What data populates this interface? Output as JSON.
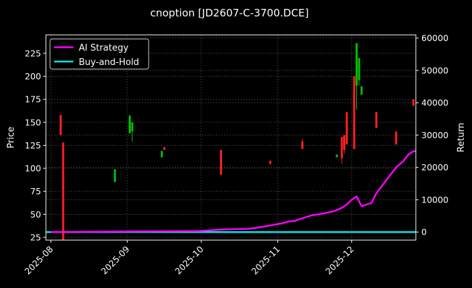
{
  "chart_data": {
    "type": "candlestick+line",
    "title": "cnoption [JD2607-C-3700.DCE]",
    "xlabel": "",
    "ylabel": "Price",
    "ylabel_right": "Return",
    "x_ticks": [
      "2025-08",
      "2025-09",
      "2025-10",
      "2025-11",
      "2025-12"
    ],
    "y_ticks_left": [
      25,
      50,
      75,
      100,
      125,
      150,
      175,
      200,
      225
    ],
    "y_ticks_right": [
      0,
      10000,
      20000,
      30000,
      40000,
      50000,
      60000
    ],
    "ylim_left": [
      22,
      245
    ],
    "ylim_right": [
      -2500,
      61000
    ],
    "xlim": [
      "2025-07-30",
      "2025-12-27"
    ],
    "grid": true,
    "legend_position": "upper left",
    "legend": [
      {
        "label": "AI Strategy",
        "color": "#ff00ff"
      },
      {
        "label": "Buy-and-Hold",
        "color": "#00e5ee"
      }
    ],
    "colors": {
      "up": "#00c000",
      "down": "#ff2020",
      "background": "#000000",
      "grid": "#555555"
    },
    "candles": [
      {
        "date": "2025-08-05",
        "open": 158,
        "close": 136,
        "high": 158,
        "low": 136
      },
      {
        "date": "2025-08-06",
        "open": 128,
        "close": 22,
        "high": 128,
        "low": 22
      },
      {
        "date": "2025-08-27",
        "open": 85,
        "close": 99,
        "high": 99,
        "low": 85
      },
      {
        "date": "2025-09-02",
        "open": 138,
        "close": 157,
        "high": 158,
        "low": 138
      },
      {
        "date": "2025-09-03",
        "open": 140,
        "close": 150,
        "high": 150,
        "low": 129
      },
      {
        "date": "2025-09-15",
        "open": 112,
        "close": 119,
        "high": 119,
        "low": 112
      },
      {
        "date": "2025-09-16",
        "open": 123,
        "close": 120,
        "high": 123,
        "low": 120
      },
      {
        "date": "2025-10-09",
        "open": 120,
        "close": 93,
        "high": 120,
        "low": 93
      },
      {
        "date": "2025-10-29",
        "open": 108,
        "close": 105,
        "high": 109,
        "low": 104
      },
      {
        "date": "2025-11-11",
        "open": 129,
        "close": 121,
        "high": 132,
        "low": 121
      },
      {
        "date": "2025-11-25",
        "open": 112,
        "close": 115,
        "high": 115,
        "low": 112
      },
      {
        "date": "2025-11-27",
        "open": 134,
        "close": 111,
        "high": 134,
        "low": 105
      },
      {
        "date": "2025-11-28",
        "open": 136,
        "close": 120,
        "high": 136,
        "low": 116
      },
      {
        "date": "2025-11-29",
        "open": 161,
        "close": 126,
        "high": 161,
        "low": 126
      },
      {
        "date": "2025-12-02",
        "open": 200,
        "close": 121,
        "high": 200,
        "low": 121
      },
      {
        "date": "2025-12-03",
        "open": 190,
        "close": 236,
        "high": 236,
        "low": 164
      },
      {
        "date": "2025-12-04",
        "open": 196,
        "close": 220,
        "high": 220,
        "low": 190
      },
      {
        "date": "2025-12-05",
        "open": 180,
        "close": 189,
        "high": 189,
        "low": 180
      },
      {
        "date": "2025-12-11",
        "open": 161,
        "close": 144,
        "high": 161,
        "low": 144
      },
      {
        "date": "2025-12-19",
        "open": 140,
        "close": 126,
        "high": 140,
        "low": 126
      },
      {
        "date": "2025-12-26",
        "open": 175,
        "close": 168,
        "high": 175,
        "low": 168
      }
    ],
    "series": [
      {
        "name": "AI Strategy",
        "color": "#ff00ff",
        "axis": "right",
        "x": [
          "2025-08-01",
          "2025-09-30",
          "2025-10-10",
          "2025-10-20",
          "2025-10-25",
          "2025-10-30",
          "2025-11-03",
          "2025-11-05",
          "2025-11-08",
          "2025-11-12",
          "2025-11-15",
          "2025-11-20",
          "2025-11-24",
          "2025-11-27",
          "2025-11-29",
          "2025-12-01",
          "2025-12-03",
          "2025-12-05",
          "2025-12-07",
          "2025-12-09",
          "2025-12-11",
          "2025-12-13",
          "2025-12-15",
          "2025-12-17",
          "2025-12-19",
          "2025-12-22",
          "2025-12-24",
          "2025-12-26",
          "2025-12-27"
        ],
        "values": [
          0,
          300,
          800,
          1000,
          1500,
          2200,
          2700,
          3200,
          3500,
          4500,
          5200,
          5800,
          6500,
          7500,
          8500,
          10000,
          11000,
          8000,
          8500,
          9000,
          12000,
          14000,
          16000,
          18000,
          20000,
          22000,
          24000,
          25000,
          25000
        ]
      },
      {
        "name": "Buy-and-Hold",
        "color": "#00e5ee",
        "axis": "right",
        "x": [
          "2025-07-30",
          "2025-12-27"
        ],
        "values": [
          0,
          0
        ]
      }
    ]
  }
}
